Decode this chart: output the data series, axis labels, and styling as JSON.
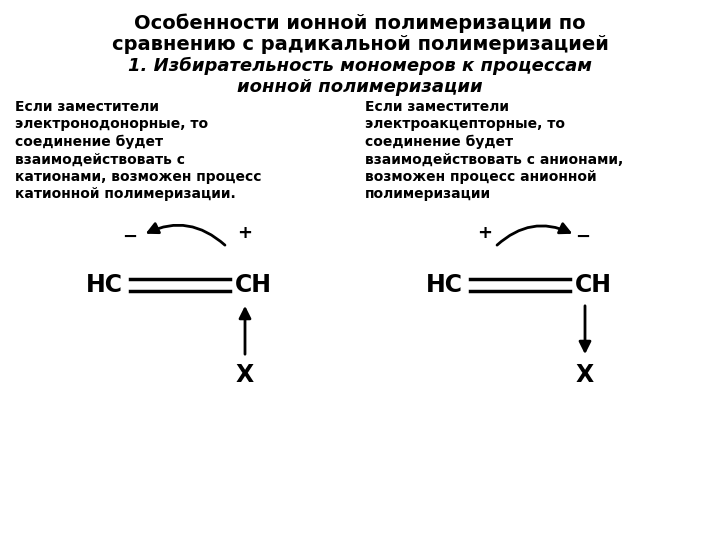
{
  "title_line1": "Особенности ионной полимеризации по",
  "title_line2": "сравнению с радикальной полимеризацией",
  "subtitle_line1": "1. Избирательность мономеров к процессам",
  "subtitle_line2": "ионной полимеризации",
  "left_text": "Если заместители\nэлектронодонорные, то\nсоединение будет\nвзаимодействовать с\nкатионами, возможен процесс\nкатионной полимеризации.",
  "right_text": "Если заместители\nэлектроакцепторные, то\nсоединение будет\nвзаимодействовать с анионами,\nвозможен процесс анионной\nполимеризации",
  "bg_color": "#ffffff",
  "text_color": "#000000",
  "title_fontsize": 14,
  "subtitle_fontsize": 13,
  "body_fontsize": 10
}
